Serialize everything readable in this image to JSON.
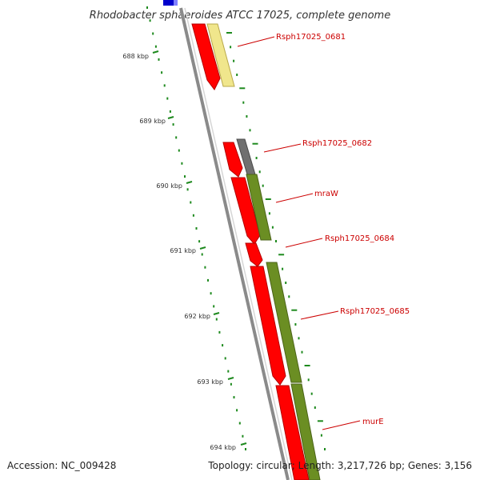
{
  "title": "Rhodobacter sphaeroides ATCC 17025, complete genome",
  "accession_text": "Accession: NC_009428",
  "summary_text": "Topology: circular; Length: 3,217,726 bp; Genes: 3,156",
  "ticks": [
    "688 kbp",
    "689 kbp",
    "690 kbp",
    "691 kbp",
    "692 kbp",
    "693 kbp",
    "694 kbp"
  ],
  "genes": [
    {
      "name": "Rsph17025_0681"
    },
    {
      "name": "Rsph17025_0682"
    },
    {
      "name": "mraW"
    },
    {
      "name": "Rsph17025_0684"
    },
    {
      "name": "Rsph17025_0685"
    },
    {
      "name": "murE"
    }
  ],
  "colors": {
    "cds_strand": "#ff0000",
    "cds_dark": "#b30000",
    "gene_yellow": "#f0e68c",
    "gene_green": "#6b8e23",
    "gene_gray": "#707070",
    "backbone": "#8a8a8a",
    "tick_green": "#1e8a1e",
    "label_red": "#cc0000",
    "prev_blue": "#0000cc"
  }
}
